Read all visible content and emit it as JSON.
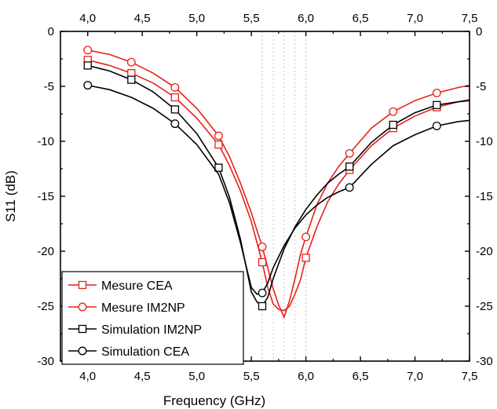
{
  "chart_data": {
    "type": "line",
    "title": "",
    "xlabel": "Frequency (GHz)",
    "ylabel": "S11 (dB)",
    "xlim": [
      3.75,
      7.5
    ],
    "ylim": [
      -30,
      0
    ],
    "x_ticks": [
      4.0,
      4.5,
      5.0,
      5.5,
      6.0,
      6.5,
      7.0,
      7.5
    ],
    "x_tick_labels": [
      "4,0",
      "4,5",
      "5,0",
      "5,5",
      "6,0",
      "6,5",
      "7,0",
      "7,5"
    ],
    "y_ticks": [
      0,
      -5,
      -10,
      -15,
      -20,
      -25,
      -30
    ],
    "y_tick_labels": [
      "0",
      "-5",
      "-10",
      "-15",
      "-20",
      "-25",
      "-30"
    ],
    "mirror_axes": true,
    "grid": "vertical dotted lines at x = 5.6 … 6.0",
    "legend_position": "bottom-left",
    "series": [
      {
        "name": "Mesure CEA",
        "color": "#e8201b",
        "marker": "square",
        "x": [
          4.0,
          4.2,
          4.4,
          4.6,
          4.8,
          5.0,
          5.2,
          5.3,
          5.4,
          5.5,
          5.6,
          5.65,
          5.7,
          5.75,
          5.8,
          5.85,
          5.9,
          5.95,
          6.0,
          6.1,
          6.2,
          6.3,
          6.4,
          6.6,
          6.8,
          7.0,
          7.2,
          7.4,
          7.5
        ],
        "y": [
          -2.6,
          -3.1,
          -3.8,
          -4.7,
          -6.0,
          -7.9,
          -10.3,
          -12.2,
          -14.5,
          -17.3,
          -21.0,
          -23.3,
          -24.8,
          -25.3,
          -25.4,
          -25.0,
          -23.9,
          -22.6,
          -20.6,
          -17.8,
          -15.5,
          -13.9,
          -12.6,
          -10.4,
          -8.8,
          -7.7,
          -6.9,
          -6.4,
          -6.2
        ],
        "marker_x": [
          4.0,
          4.4,
          4.8,
          5.2,
          5.6,
          6.0,
          6.4,
          6.8,
          7.2
        ],
        "marker_y": [
          -2.6,
          -3.8,
          -6.0,
          -10.3,
          -21.0,
          -20.6,
          -12.6,
          -8.8,
          -6.9
        ]
      },
      {
        "name": "Mesure IM2NP",
        "color": "#e8201b",
        "marker": "circle",
        "x": [
          4.0,
          4.2,
          4.4,
          4.6,
          4.8,
          5.0,
          5.2,
          5.3,
          5.4,
          5.5,
          5.6,
          5.65,
          5.7,
          5.75,
          5.8,
          5.85,
          5.9,
          5.95,
          6.0,
          6.1,
          6.2,
          6.3,
          6.4,
          6.6,
          6.8,
          7.0,
          7.2,
          7.4,
          7.5
        ],
        "y": [
          -1.7,
          -2.1,
          -2.8,
          -3.8,
          -5.1,
          -7.0,
          -9.5,
          -11.4,
          -13.8,
          -16.5,
          -19.6,
          -21.5,
          -23.4,
          -24.9,
          -26.0,
          -24.5,
          -22.5,
          -20.3,
          -18.7,
          -15.8,
          -13.8,
          -12.3,
          -11.1,
          -8.8,
          -7.3,
          -6.3,
          -5.6,
          -5.1,
          -4.9
        ],
        "marker_x": [
          4.0,
          4.4,
          4.8,
          5.2,
          5.6,
          6.0,
          6.4,
          6.8,
          7.2
        ],
        "marker_y": [
          -1.7,
          -2.8,
          -5.1,
          -9.5,
          -19.6,
          -18.7,
          -11.1,
          -7.3,
          -5.6
        ]
      },
      {
        "name": "Simulation IM2NP",
        "color": "#000000",
        "marker": "square",
        "x": [
          4.0,
          4.2,
          4.4,
          4.6,
          4.8,
          5.0,
          5.2,
          5.3,
          5.4,
          5.5,
          5.55,
          5.6,
          5.65,
          5.7,
          5.8,
          5.9,
          6.0,
          6.1,
          6.2,
          6.3,
          6.4,
          6.6,
          6.8,
          7.0,
          7.2,
          7.4,
          7.5
        ],
        "y": [
          -3.1,
          -3.6,
          -4.4,
          -5.5,
          -7.1,
          -9.3,
          -12.4,
          -15.1,
          -18.9,
          -23.7,
          -24.6,
          -25.0,
          -24.2,
          -22.5,
          -19.8,
          -17.8,
          -16.2,
          -14.9,
          -13.8,
          -13.0,
          -12.3,
          -10.1,
          -8.5,
          -7.4,
          -6.7,
          -6.4,
          -6.3
        ],
        "marker_x": [
          4.0,
          4.4,
          4.8,
          5.2,
          5.6,
          6.4,
          6.8,
          7.2
        ],
        "marker_y": [
          -3.1,
          -4.4,
          -7.1,
          -12.4,
          -25.0,
          -12.3,
          -8.5,
          -6.7
        ]
      },
      {
        "name": "Simulation CEA",
        "color": "#000000",
        "marker": "circle",
        "x": [
          4.0,
          4.2,
          4.4,
          4.6,
          4.8,
          5.0,
          5.2,
          5.3,
          5.4,
          5.5,
          5.55,
          5.6,
          5.65,
          5.7,
          5.8,
          5.9,
          6.0,
          6.1,
          6.2,
          6.3,
          6.4,
          6.6,
          6.8,
          7.0,
          7.2,
          7.4,
          7.5
        ],
        "y": [
          -4.9,
          -5.3,
          -6.0,
          -7.0,
          -8.4,
          -10.3,
          -13.0,
          -15.6,
          -19.2,
          -23.3,
          -23.9,
          -23.8,
          -22.9,
          -21.5,
          -19.5,
          -17.9,
          -16.7,
          -15.8,
          -15.1,
          -14.6,
          -14.2,
          -12.1,
          -10.4,
          -9.4,
          -8.6,
          -8.2,
          -8.1
        ],
        "marker_x": [
          4.0,
          4.8,
          5.6,
          6.4,
          7.2
        ],
        "marker_y": [
          -4.9,
          -8.4,
          -23.8,
          -14.2,
          -8.6
        ]
      }
    ]
  }
}
